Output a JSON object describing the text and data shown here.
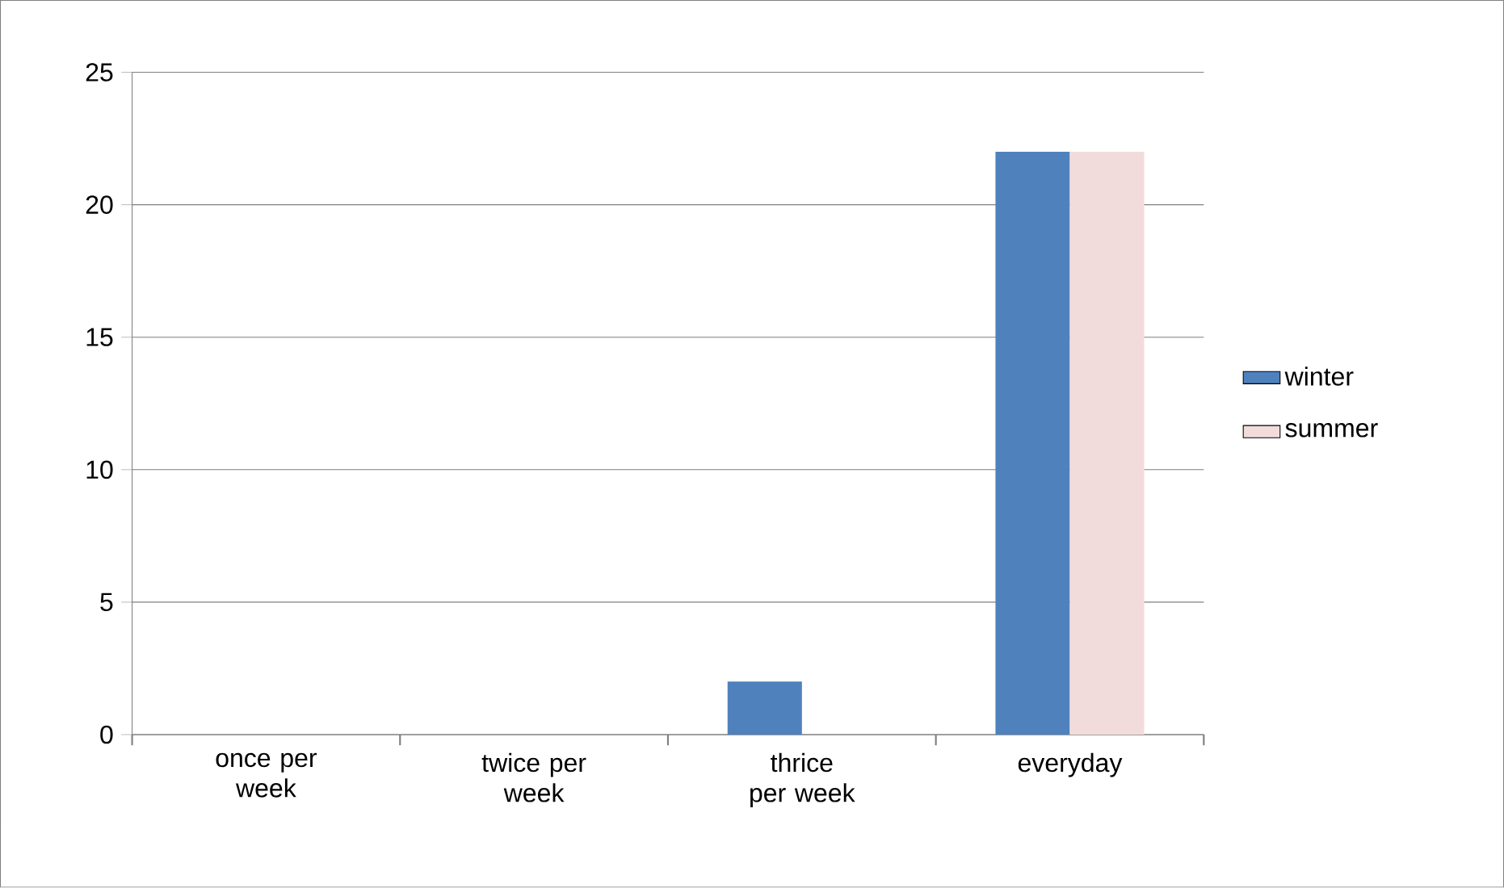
{
  "chart_data": {
    "type": "bar",
    "categories": [
      "once per week",
      "twice per week",
      "thrice per week",
      "everyday"
    ],
    "series": [
      {
        "name": "winter",
        "color": "#4f81bd",
        "values": [
          0,
          0,
          2,
          22
        ]
      },
      {
        "name": "summer",
        "color": "#f2dcdb",
        "values": [
          0,
          0,
          0,
          22
        ]
      }
    ],
    "ylim": [
      0,
      25
    ],
    "yticks": [
      0,
      5,
      10,
      15,
      20,
      25
    ],
    "grid": "y",
    "legend": "right"
  }
}
